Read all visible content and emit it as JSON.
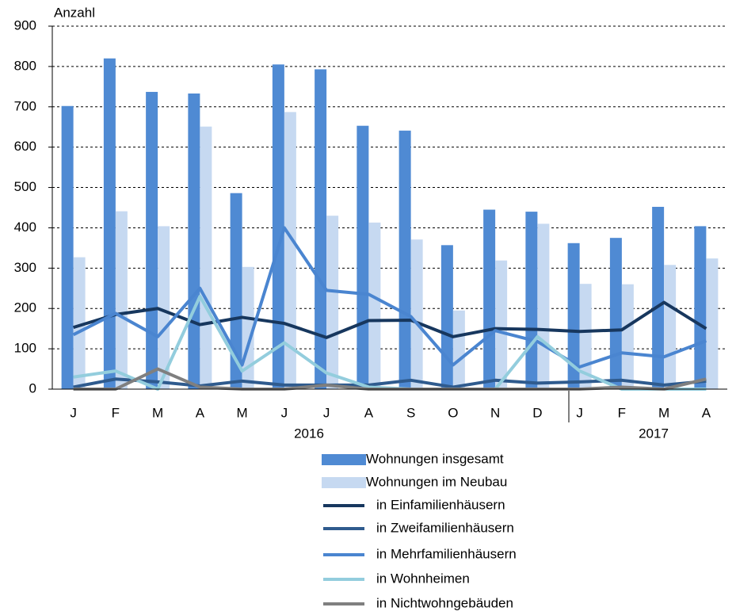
{
  "chart_data": {
    "type": "bar",
    "y_label": "Anzahl",
    "categories": [
      "J",
      "F",
      "M",
      "A",
      "M",
      "J",
      "J",
      "A",
      "S",
      "O",
      "N",
      "D",
      "J",
      "F",
      "M",
      "A"
    ],
    "year_labels": [
      "2016",
      "2017"
    ],
    "ylim": [
      0,
      900
    ],
    "yticks": [
      0,
      100,
      200,
      300,
      400,
      500,
      600,
      700,
      800,
      900
    ],
    "grid": true,
    "series": [
      {
        "name": "Wohnungen insgesamt",
        "type": "bar",
        "color": "#4f8ad3",
        "values": [
          702,
          820,
          737,
          733,
          486,
          805,
          793,
          653,
          641,
          357,
          445,
          440,
          362,
          375,
          452,
          404
        ]
      },
      {
        "name": "Wohnungen im Neubau",
        "type": "bar",
        "color": "#c6d9f1",
        "values": [
          327,
          441,
          404,
          651,
          303,
          687,
          430,
          413,
          371,
          195,
          319,
          410,
          261,
          260,
          308,
          324
        ]
      },
      {
        "name": "in Einfamilienhäusern",
        "type": "line",
        "color": "#17375e",
        "values": [
          153,
          185,
          200,
          160,
          178,
          163,
          128,
          170,
          171,
          130,
          150,
          148,
          143,
          147,
          215,
          150
        ]
      },
      {
        "name": "in Zweifamilienhäusern",
        "type": "line",
        "color": "#2f5b8e",
        "values": [
          5,
          25,
          18,
          8,
          20,
          10,
          10,
          10,
          22,
          5,
          22,
          15,
          18,
          22,
          10,
          20
        ]
      },
      {
        "name": "in Mehrfamilienhäusern",
        "type": "line",
        "color": "#4a85d0",
        "values": [
          135,
          188,
          130,
          250,
          60,
          400,
          245,
          235,
          180,
          60,
          145,
          118,
          55,
          90,
          80,
          120
        ]
      },
      {
        "name": "in Wohnheimen",
        "type": "line",
        "color": "#93cddd",
        "values": [
          30,
          45,
          0,
          230,
          45,
          115,
          40,
          5,
          0,
          0,
          0,
          130,
          45,
          0,
          0,
          0
        ]
      },
      {
        "name": "in Nichtwohngebäuden",
        "type": "line",
        "color": "#7f7f7f",
        "values": [
          0,
          0,
          50,
          5,
          0,
          0,
          10,
          0,
          0,
          0,
          0,
          0,
          0,
          5,
          0,
          25
        ]
      }
    ]
  }
}
